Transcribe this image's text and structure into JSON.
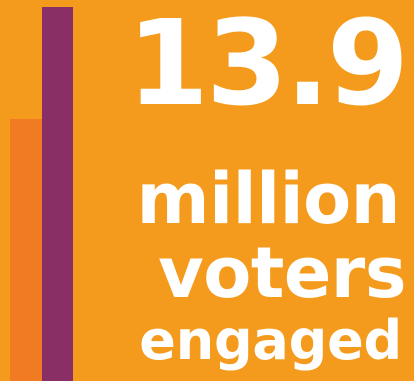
{
  "stat": {
    "value": "13.9",
    "line_1": "million",
    "line_2": "voters",
    "line_3": "engaged"
  },
  "colors": {
    "background": "#f49b1d",
    "left_bar": "#f07b23",
    "right_bar": "#8a2f66",
    "text": "#ffffff"
  }
}
